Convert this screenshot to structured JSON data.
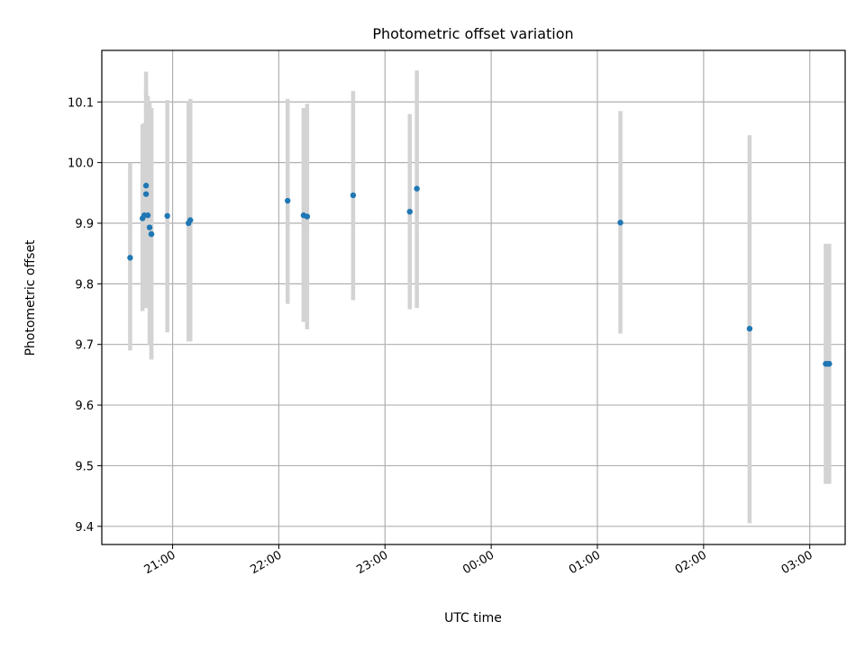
{
  "chart_data": {
    "type": "scatter",
    "title": "Photometric offset variation",
    "xlabel": "UTC time",
    "ylabel": "Photometric offset",
    "grid": true,
    "xlim": [
      "20:20",
      "03:20"
    ],
    "ylim": [
      9.37,
      10.185
    ],
    "x_ticks": [
      "21:00",
      "22:00",
      "23:00",
      "00:00",
      "01:00",
      "02:00",
      "03:00"
    ],
    "y_ticks": [
      9.4,
      9.5,
      9.6,
      9.7,
      9.8,
      9.9,
      10.0,
      10.1
    ],
    "y_tick_labels": [
      "9.4",
      "9.5",
      "9.6",
      "9.7",
      "9.8",
      "9.9",
      "10.0",
      "10.1"
    ],
    "colors": {
      "points": "#1f77b4",
      "errorbars": "#d3d3d3",
      "grid": "#b0b0b0"
    },
    "points": [
      {
        "x": "20:36",
        "y": 9.843,
        "lo": 9.69,
        "hi": 10.0
      },
      {
        "x": "20:43",
        "y": 9.908,
        "lo": 9.755,
        "hi": 10.063
      },
      {
        "x": "20:44",
        "y": 9.913,
        "lo": 9.76,
        "hi": 10.065
      },
      {
        "x": "20:45",
        "y": 9.962,
        "lo": 9.8,
        "hi": 10.15
      },
      {
        "x": "20:45",
        "y": 9.948,
        "lo": 9.77,
        "hi": 10.125
      },
      {
        "x": "20:46",
        "y": 9.913,
        "lo": 9.76,
        "hi": 10.11
      },
      {
        "x": "20:47",
        "y": 9.893,
        "lo": 9.7,
        "hi": 10.1
      },
      {
        "x": "20:48",
        "y": 9.882,
        "lo": 9.675,
        "hi": 10.09
      },
      {
        "x": "20:48",
        "y": 9.882,
        "lo": 9.675,
        "hi": 10.09
      },
      {
        "x": "20:57",
        "y": 9.912,
        "lo": 9.72,
        "hi": 10.103
      },
      {
        "x": "21:09",
        "y": 9.9,
        "lo": 9.705,
        "hi": 10.1
      },
      {
        "x": "21:10",
        "y": 9.905,
        "lo": 9.705,
        "hi": 10.105
      },
      {
        "x": "22:05",
        "y": 9.937,
        "lo": 9.767,
        "hi": 10.105
      },
      {
        "x": "22:14",
        "y": 9.913,
        "lo": 9.737,
        "hi": 10.09
      },
      {
        "x": "22:16",
        "y": 9.911,
        "lo": 9.725,
        "hi": 10.097
      },
      {
        "x": "22:42",
        "y": 9.946,
        "lo": 9.773,
        "hi": 10.118
      },
      {
        "x": "23:14",
        "y": 9.919,
        "lo": 9.758,
        "hi": 10.08
      },
      {
        "x": "23:18",
        "y": 9.957,
        "lo": 9.76,
        "hi": 10.152
      },
      {
        "x": "01:13",
        "y": 9.901,
        "lo": 9.718,
        "hi": 10.085
      },
      {
        "x": "02:26",
        "y": 9.726,
        "lo": 9.405,
        "hi": 10.045
      },
      {
        "x": "03:09",
        "y": 9.668,
        "lo": 9.47,
        "hi": 9.866
      },
      {
        "x": "03:10",
        "y": 9.668,
        "lo": 9.47,
        "hi": 9.866
      },
      {
        "x": "03:11",
        "y": 9.668,
        "lo": 9.47,
        "hi": 9.866
      }
    ]
  }
}
